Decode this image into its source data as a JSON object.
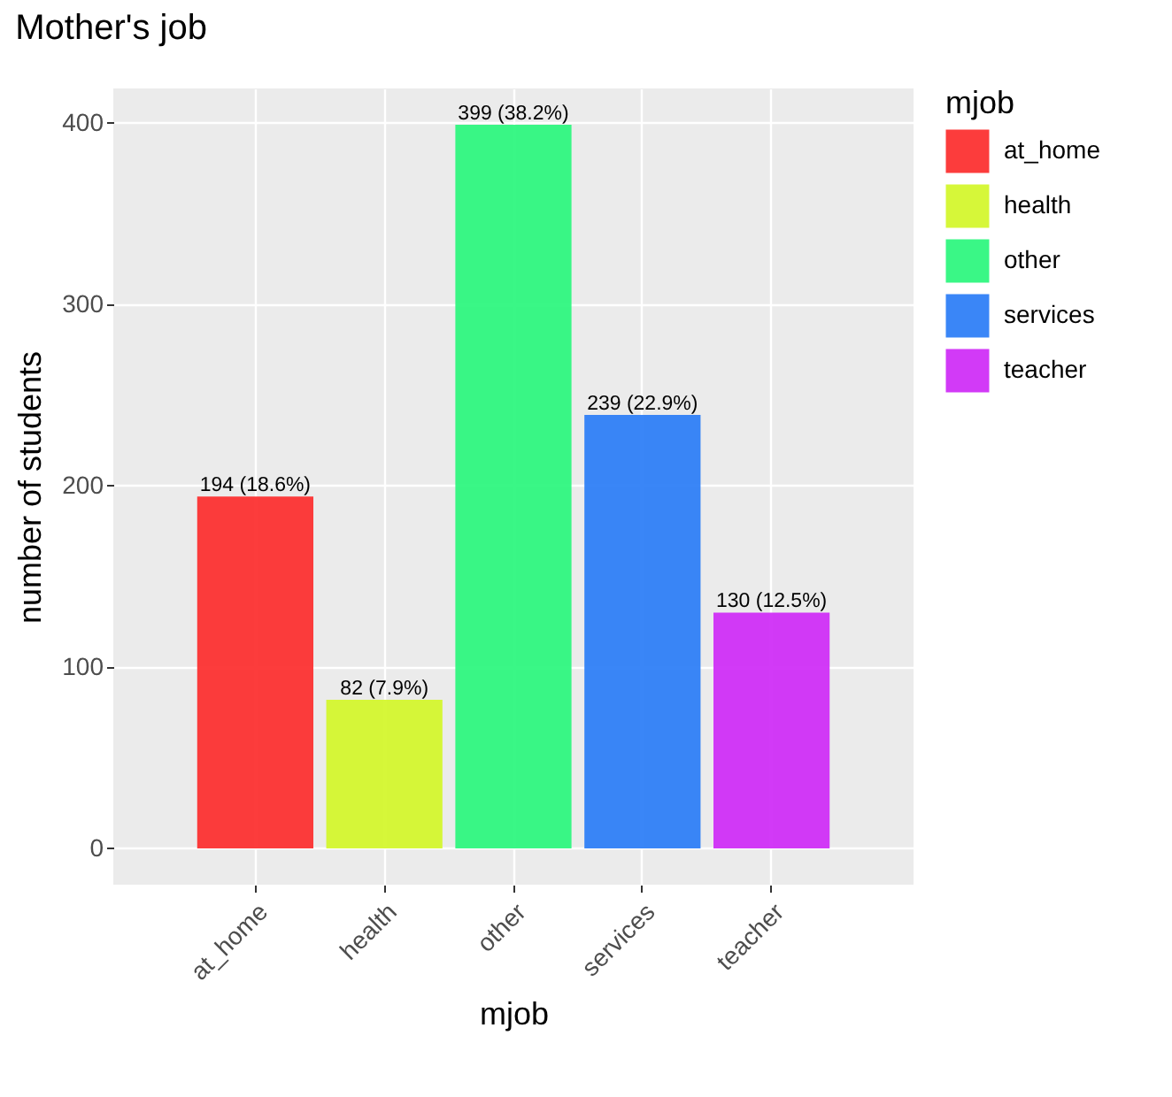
{
  "chart_data": {
    "type": "bar",
    "title": "Mother's job",
    "xlabel": "mjob",
    "ylabel": "number of students",
    "legend_title": "mjob",
    "categories": [
      "at_home",
      "health",
      "other",
      "services",
      "teacher"
    ],
    "stacked": true,
    "series": [
      {
        "name": "at_home",
        "color": "#fc3232",
        "values": [
          194,
          null,
          null,
          null,
          null
        ],
        "value_labels": [
          "194 (18.6%)",
          null,
          null,
          null,
          null
        ]
      },
      {
        "name": "health",
        "color": "#d4f72e",
        "values": [
          null,
          82,
          null,
          null,
          null
        ],
        "value_labels": [
          null,
          "82 (7.9%)",
          null,
          null,
          null
        ]
      },
      {
        "name": "other",
        "color": "#2ff77f",
        "values": [
          null,
          null,
          399,
          null,
          null
        ],
        "value_labels": [
          null,
          null,
          "399 (38.2%)",
          null,
          null
        ]
      },
      {
        "name": "services",
        "color": "#2f80f7",
        "values": [
          null,
          null,
          null,
          239,
          null
        ],
        "value_labels": [
          null,
          null,
          null,
          "239 (22.9%)",
          null
        ]
      },
      {
        "name": "teacher",
        "color": "#d02ff7",
        "values": [
          null,
          null,
          null,
          null,
          130
        ],
        "value_labels": [
          null,
          null,
          null,
          null,
          "130 (12.5%)"
        ]
      }
    ],
    "ylim": [
      -20,
      419
    ],
    "yticks": [
      0,
      100,
      200,
      300,
      400
    ],
    "grid": true,
    "legend": "right"
  }
}
